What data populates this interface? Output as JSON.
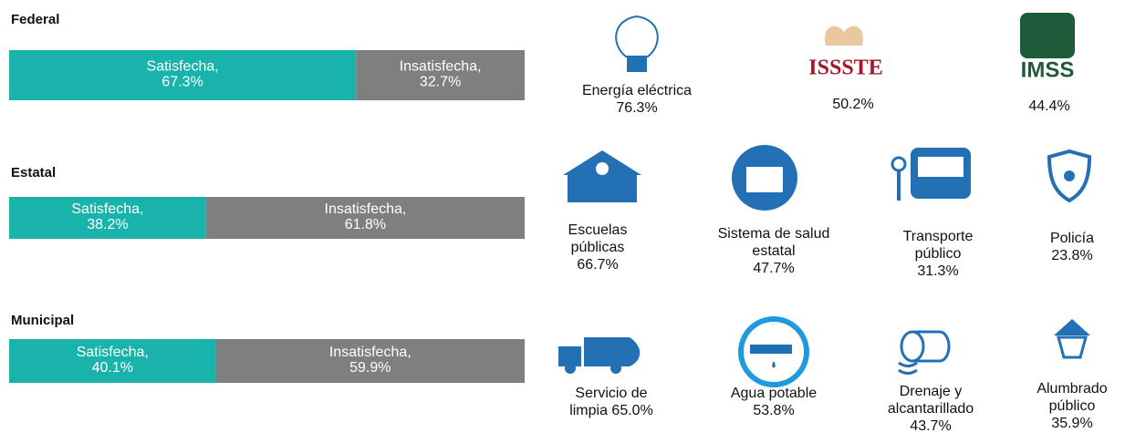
{
  "chart_data": [
    {
      "type": "bar",
      "title": "Federal",
      "xlim": [
        0,
        100
      ],
      "series": [
        {
          "name": "Satisfecha,",
          "color": "#1ab3ac",
          "values": [
            67.3
          ],
          "value_labels": [
            "67.3%"
          ]
        },
        {
          "name": "Insatisfecha,",
          "color": "#7f7f7f",
          "values": [
            32.7
          ],
          "value_labels": [
            "32.7%"
          ]
        }
      ]
    },
    {
      "type": "bar",
      "title": "Estatal",
      "xlim": [
        0,
        100
      ],
      "series": [
        {
          "name": "Satisfecha,",
          "color": "#1ab3ac",
          "values": [
            38.2
          ],
          "value_labels": [
            "38.2%"
          ]
        },
        {
          "name": "Insatisfecha,",
          "color": "#7f7f7f",
          "values": [
            61.8
          ],
          "value_labels": [
            "61.8%"
          ]
        }
      ]
    },
    {
      "type": "bar",
      "title": "Municipal",
      "xlim": [
        0,
        100
      ],
      "series": [
        {
          "name": "Satisfecha,",
          "color": "#1ab3ac",
          "values": [
            40.1
          ],
          "value_labels": [
            "40.1%"
          ]
        },
        {
          "name": "Insatisfecha,",
          "color": "#7f7f7f",
          "values": [
            59.9
          ],
          "value_labels": [
            "59.9%"
          ]
        }
      ]
    }
  ],
  "services": [
    {
      "lines": [
        "Energía eléctrica",
        "76.3%"
      ]
    },
    {
      "logo": "ISSSTE",
      "lines": [
        "50.2%"
      ]
    },
    {
      "logo": "IMSS",
      "lines": [
        "44.4%"
      ]
    },
    {
      "lines": [
        "Escuelas",
        "públicas",
        "66.7%"
      ]
    },
    {
      "lines": [
        "Sistema de salud",
        "estatal",
        "47.7%"
      ]
    },
    {
      "lines": [
        "Transporte",
        "público",
        "31.3%"
      ]
    },
    {
      "lines": [
        "Policía",
        "23.8%"
      ]
    },
    {
      "lines": [
        "Servicio de",
        "limpia 65.0%"
      ]
    },
    {
      "lines": [
        "Agua potable",
        "53.8%"
      ]
    },
    {
      "lines": [
        "Drenaje y",
        "alcantarillado",
        "43.7%"
      ]
    },
    {
      "lines": [
        "Alumbrado",
        "público",
        "35.9%"
      ]
    }
  ]
}
